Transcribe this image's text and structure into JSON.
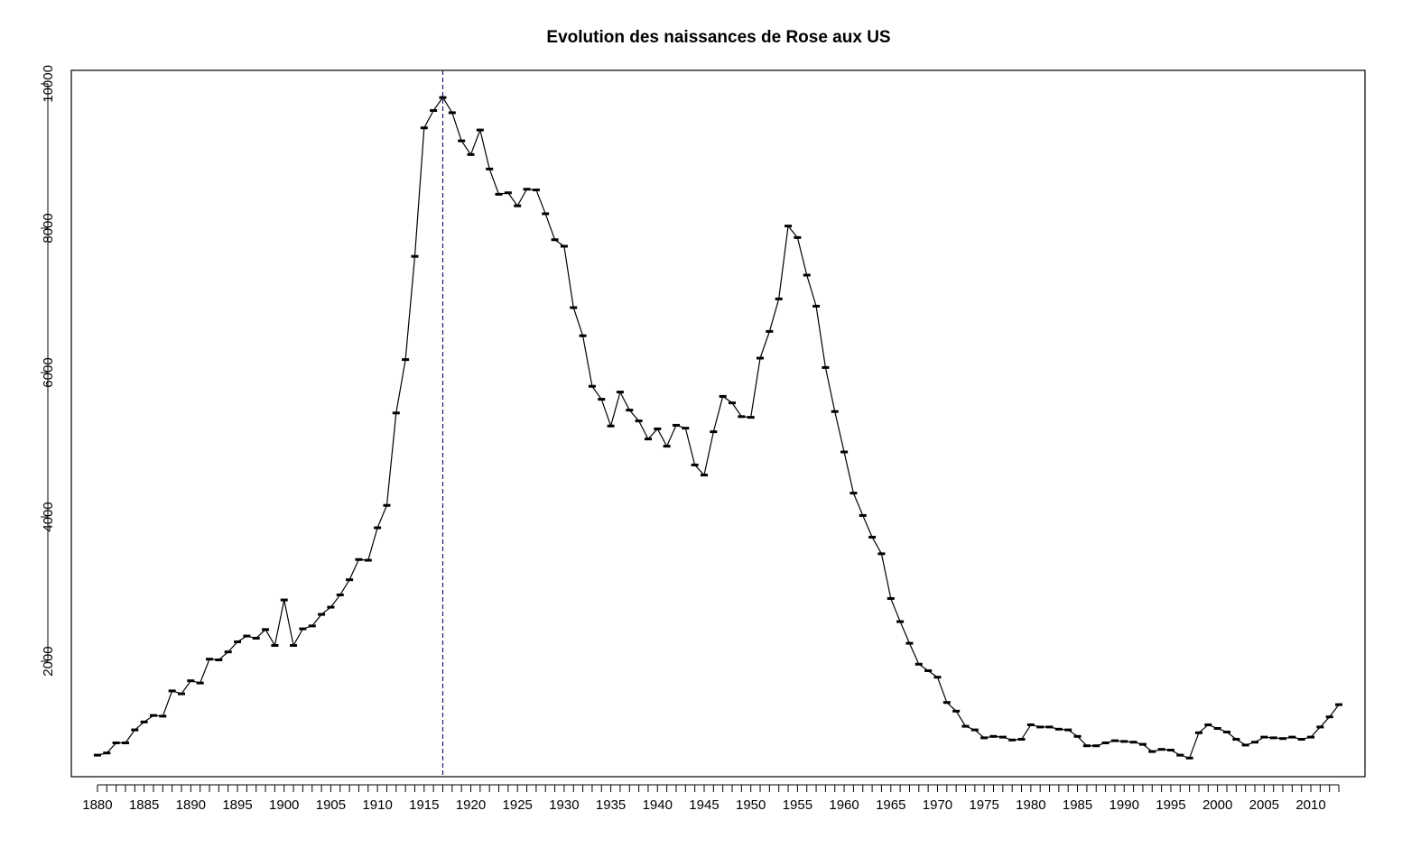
{
  "chart_data": {
    "type": "line",
    "title": "Evolution des naissances de Rose aux US",
    "xlabel": "",
    "ylabel": "",
    "xlim": [
      1877.2,
      2015.8
    ],
    "ylim": [
      401.6,
      10186.4
    ],
    "y_ticks": [
      2000,
      4000,
      6000,
      8000,
      10000
    ],
    "x_tick_labels": [
      1880,
      1885,
      1890,
      1895,
      1900,
      1905,
      1910,
      1915,
      1920,
      1925,
      1930,
      1935,
      1940,
      1945,
      1950,
      1955,
      1960,
      1965,
      1970,
      1975,
      1980,
      1985,
      1990,
      1995,
      2000,
      2005,
      2010
    ],
    "grid": false,
    "legend": "none",
    "reference_line": {
      "x": 1917,
      "style": "dashed",
      "color": "#1a1a6e"
    },
    "series": [
      {
        "x": [
          1880,
          1881,
          1882,
          1883,
          1884,
          1885,
          1886,
          1887,
          1888,
          1889,
          1890,
          1891,
          1892,
          1893,
          1894,
          1895,
          1896,
          1897,
          1898,
          1899,
          1900,
          1901,
          1902,
          1903,
          1904,
          1905,
          1906,
          1907,
          1908,
          1909,
          1910,
          1911,
          1912,
          1913,
          1914,
          1915,
          1916,
          1917,
          1918,
          1919,
          1920,
          1921,
          1922,
          1923,
          1924,
          1925,
          1926,
          1927,
          1928,
          1929,
          1930,
          1931,
          1932,
          1933,
          1934,
          1935,
          1936,
          1937,
          1938,
          1939,
          1940,
          1941,
          1942,
          1943,
          1944,
          1945,
          1946,
          1947,
          1948,
          1949,
          1950,
          1951,
          1952,
          1953,
          1954,
          1955,
          1956,
          1957,
          1958,
          1959,
          1960,
          1961,
          1962,
          1963,
          1964,
          1965,
          1966,
          1967,
          1968,
          1969,
          1970,
          1971,
          1972,
          1973,
          1974,
          1975,
          1976,
          1977,
          1978,
          1979,
          1980,
          1981,
          1982,
          1983,
          1984,
          1985,
          1986,
          1987,
          1988,
          1989,
          1990,
          1991,
          1992,
          1993,
          1994,
          1995,
          1996,
          1997,
          1998,
          1999,
          2000,
          2001,
          2002,
          2003,
          2004,
          2005,
          2006,
          2007,
          2008,
          2009,
          2010,
          2011,
          2012,
          2013
        ],
        "values": [
          700,
          730,
          870,
          870,
          1050,
          1160,
          1250,
          1240,
          1590,
          1550,
          1730,
          1700,
          2030,
          2020,
          2130,
          2270,
          2350,
          2320,
          2440,
          2220,
          2850,
          2220,
          2450,
          2490,
          2650,
          2750,
          2920,
          3130,
          3410,
          3400,
          3850,
          4160,
          5440,
          6180,
          7610,
          9390,
          9630,
          9810,
          9600,
          9210,
          9020,
          9360,
          8820,
          8470,
          8490,
          8310,
          8540,
          8530,
          8200,
          7840,
          7750,
          6900,
          6510,
          5810,
          5630,
          5260,
          5730,
          5480,
          5330,
          5080,
          5220,
          4980,
          5270,
          5230,
          4720,
          4580,
          5180,
          5670,
          5580,
          5390,
          5380,
          6200,
          6570,
          7020,
          8030,
          7870,
          7350,
          6920,
          6070,
          5460,
          4900,
          4330,
          4020,
          3720,
          3490,
          2870,
          2550,
          2250,
          1960,
          1870,
          1780,
          1430,
          1310,
          1100,
          1050,
          940,
          960,
          950,
          910,
          920,
          1120,
          1090,
          1090,
          1060,
          1050,
          960,
          830,
          830,
          870,
          900,
          890,
          880,
          850,
          750,
          780,
          770,
          700,
          660,
          1010,
          1120,
          1070,
          1020,
          920,
          840,
          880,
          950,
          940,
          930,
          950,
          920,
          950,
          1090,
          1230,
          1400
        ]
      }
    ]
  }
}
